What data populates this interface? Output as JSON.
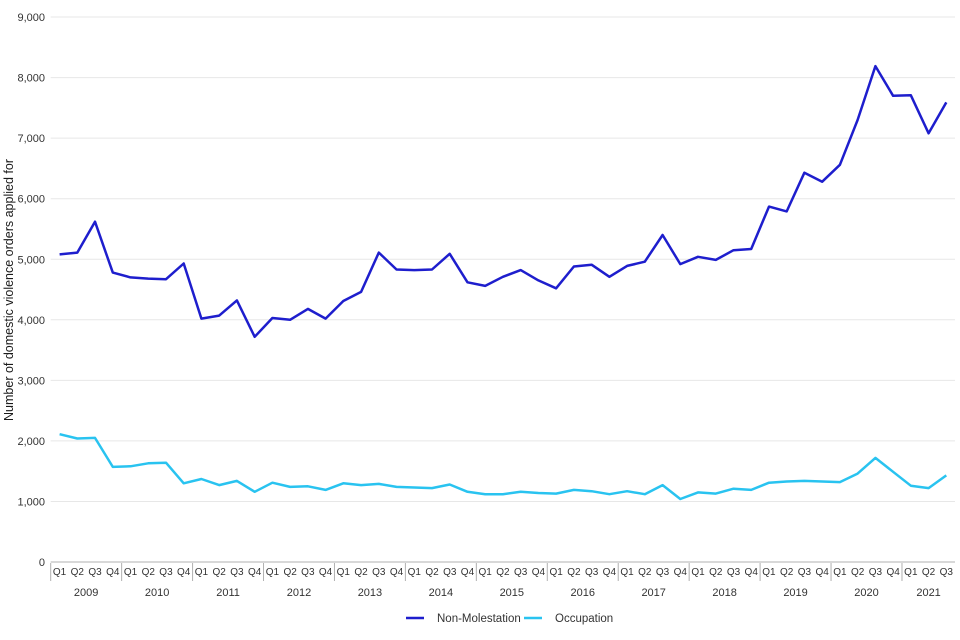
{
  "chart_data": {
    "type": "line",
    "y_axis_title": "Number of domestic violence orders applied for",
    "y_ticks": [
      "0",
      "1,000",
      "2,000",
      "3,000",
      "4,000",
      "5,000",
      "6,000",
      "7,000",
      "8,000",
      "9,000"
    ],
    "ylim": [
      0,
      9000
    ],
    "grid": "horizontal",
    "legend_position": "bottom-center",
    "quarter_labels": [
      "Q1",
      "Q2",
      "Q3",
      "Q4"
    ],
    "years": [
      {
        "label": "2009",
        "quarters": 4
      },
      {
        "label": "2010",
        "quarters": 4
      },
      {
        "label": "2011",
        "quarters": 4
      },
      {
        "label": "2012",
        "quarters": 4
      },
      {
        "label": "2013",
        "quarters": 4
      },
      {
        "label": "2014",
        "quarters": 4
      },
      {
        "label": "2015",
        "quarters": 4
      },
      {
        "label": "2016",
        "quarters": 4
      },
      {
        "label": "2017",
        "quarters": 4
      },
      {
        "label": "2018",
        "quarters": 4
      },
      {
        "label": "2019",
        "quarters": 4
      },
      {
        "label": "2020",
        "quarters": 4
      },
      {
        "label": "2021",
        "quarters": 3
      }
    ],
    "series": [
      {
        "name": "Non-Molestation",
        "color": "#1e1ecd",
        "values": [
          5080,
          5110,
          5620,
          4780,
          4700,
          4680,
          4670,
          4930,
          4020,
          4070,
          4320,
          3720,
          4030,
          4000,
          4180,
          4020,
          4310,
          4460,
          5110,
          4830,
          4820,
          4830,
          5090,
          4620,
          4560,
          4710,
          4820,
          4650,
          4520,
          4880,
          4910,
          4710,
          4890,
          4960,
          5400,
          4920,
          5040,
          4990,
          5150,
          5170,
          5870,
          5790,
          6430,
          6280,
          6560,
          7300,
          8190,
          7700,
          7710,
          7080,
          7590
        ]
      },
      {
        "name": "Occupation",
        "color": "#29c3f0",
        "values": [
          2110,
          2040,
          2050,
          1570,
          1580,
          1630,
          1640,
          1300,
          1370,
          1270,
          1340,
          1160,
          1310,
          1240,
          1250,
          1190,
          1300,
          1270,
          1290,
          1240,
          1230,
          1220,
          1280,
          1160,
          1120,
          1120,
          1160,
          1140,
          1130,
          1190,
          1170,
          1120,
          1170,
          1120,
          1270,
          1040,
          1150,
          1130,
          1210,
          1190,
          1310,
          1330,
          1340,
          1330,
          1320,
          1460,
          1720,
          1490,
          1260,
          1220,
          1430
        ]
      }
    ],
    "colors": {
      "grid": "#e7e7e7",
      "axis": "#b0b0b0",
      "text": "#333333"
    }
  }
}
